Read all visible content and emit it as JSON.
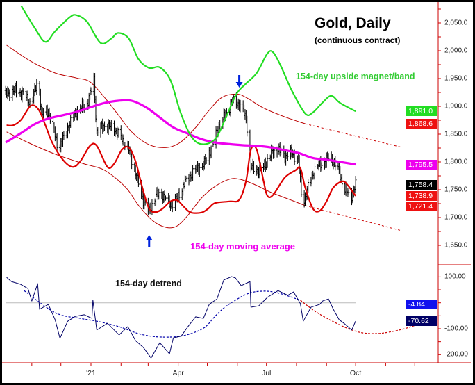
{
  "chart_data": {
    "type": "line",
    "title": "Gold, Daily",
    "subtitle": "(continuous contract)",
    "annotations": {
      "upside_band": "154-day upside magnet/band",
      "moving_average": "154-day moving average",
      "detrend": "154-day detrend"
    },
    "colors": {
      "bars": "#000000",
      "cycle": "#dd0000",
      "envelope": "#bb0000",
      "moving_average": "#ee00ee",
      "upside_band": "#22dd22",
      "detrend": "#000066",
      "detrend_projection": "#cc0000",
      "axis": "#cc0000",
      "arrows": "#0022dd"
    },
    "x_axis": {
      "tick_labels": [
        "'21",
        "Apr",
        "Jul",
        "Oct"
      ],
      "tick_dates": [
        "2021-01-01",
        "2021-04-01",
        "2021-07-01",
        "2021-10-01"
      ]
    },
    "price_axis": {
      "ylim": [
        1625,
        2075
      ],
      "tick_labels": [
        "2,050.0",
        "2,000.0",
        "1,950.0",
        "1,900.0",
        "1,850.0",
        "1,800.0",
        "1,750.0",
        "1,700.0",
        "1,650.0"
      ],
      "ticks": [
        2050,
        2000,
        1950,
        1900,
        1850,
        1800,
        1750,
        1700,
        1650
      ]
    },
    "detrend_axis": {
      "tick_labels": [
        "100.00",
        "-100.00",
        "-200.00"
      ],
      "ticks": [
        100,
        -100,
        -200
      ]
    },
    "price_closes": [
      [
        "2020-10-06",
        1922
      ],
      [
        "2020-10-13",
        1929
      ],
      [
        "2020-10-24",
        1922
      ],
      [
        "2020-10-31",
        1904
      ],
      [
        "2020-11-08",
        1950
      ],
      [
        "2020-11-11",
        1885
      ],
      [
        "2020-11-18",
        1891
      ],
      [
        "2020-11-29",
        1822
      ],
      [
        "2020-12-06",
        1854
      ],
      [
        "2020-12-17",
        1891
      ],
      [
        "2020-12-28",
        1904
      ],
      [
        "2021-01-04",
        1947
      ],
      [
        "2021-01-07",
        1854
      ],
      [
        "2021-01-15",
        1866
      ],
      [
        "2021-01-25",
        1860
      ],
      [
        "2021-02-02",
        1841
      ],
      [
        "2021-02-09",
        1822
      ],
      [
        "2021-02-16",
        1779
      ],
      [
        "2021-02-23",
        1735
      ],
      [
        "2021-03-02",
        1710
      ],
      [
        "2021-03-09",
        1741
      ],
      [
        "2021-03-16",
        1741
      ],
      [
        "2021-03-24",
        1722
      ],
      [
        "2021-03-31",
        1735
      ],
      [
        "2021-04-07",
        1760
      ],
      [
        "2021-04-18",
        1785
      ],
      [
        "2021-04-28",
        1797
      ],
      [
        "2021-05-06",
        1829
      ],
      [
        "2021-05-13",
        1866
      ],
      [
        "2021-05-20",
        1885
      ],
      [
        "2021-05-27",
        1910
      ],
      [
        "2021-06-03",
        1904
      ],
      [
        "2021-06-10",
        1879
      ],
      [
        "2021-06-15",
        1791
      ],
      [
        "2021-06-23",
        1785
      ],
      [
        "2021-06-28",
        1791
      ],
      [
        "2021-07-06",
        1816
      ],
      [
        "2021-07-13",
        1822
      ],
      [
        "2021-07-20",
        1810
      ],
      [
        "2021-07-27",
        1816
      ],
      [
        "2021-08-03",
        1804
      ],
      [
        "2021-08-07",
        1722
      ],
      [
        "2021-08-14",
        1760
      ],
      [
        "2021-08-21",
        1791
      ],
      [
        "2021-08-28",
        1797
      ],
      [
        "2021-09-04",
        1810
      ],
      [
        "2021-09-12",
        1791
      ],
      [
        "2021-09-19",
        1754
      ],
      [
        "2021-09-26",
        1735
      ],
      [
        "2021-10-01",
        1758.4
      ]
    ],
    "moving_average": [
      [
        "2020-10-05",
        1835
      ],
      [
        "2020-10-21",
        1852
      ],
      [
        "2020-11-04",
        1868
      ],
      [
        "2020-11-18",
        1878
      ],
      [
        "2020-12-03",
        1884
      ],
      [
        "2020-12-17",
        1890
      ],
      [
        "2020-12-31",
        1898
      ],
      [
        "2021-01-15",
        1906
      ],
      [
        "2021-01-29",
        1910
      ],
      [
        "2021-02-12",
        1910
      ],
      [
        "2021-02-27",
        1898
      ],
      [
        "2021-03-13",
        1880
      ],
      [
        "2021-03-27",
        1862
      ],
      [
        "2021-04-11",
        1851
      ],
      [
        "2021-04-25",
        1841
      ],
      [
        "2021-05-09",
        1835
      ],
      [
        "2021-05-24",
        1832
      ],
      [
        "2021-06-07",
        1830
      ],
      [
        "2021-06-21",
        1829
      ],
      [
        "2021-07-06",
        1826
      ],
      [
        "2021-07-20",
        1821
      ],
      [
        "2021-08-03",
        1816
      ],
      [
        "2021-08-18",
        1807
      ],
      [
        "2021-09-01",
        1804
      ],
      [
        "2021-09-15",
        1800
      ],
      [
        "2021-10-01",
        1795.5
      ]
    ],
    "upside_band": [
      [
        "2020-10-21",
        2081
      ],
      [
        "2020-11-04",
        2041
      ],
      [
        "2020-11-15",
        2016
      ],
      [
        "2020-11-25",
        2035
      ],
      [
        "2020-12-10",
        2060
      ],
      [
        "2020-12-17",
        2064
      ],
      [
        "2020-12-28",
        2052
      ],
      [
        "2021-01-11",
        2014
      ],
      [
        "2021-01-22",
        2022
      ],
      [
        "2021-01-29",
        2032
      ],
      [
        "2021-02-09",
        2022
      ],
      [
        "2021-02-19",
        1985
      ],
      [
        "2021-03-02",
        1969
      ],
      [
        "2021-03-13",
        1970
      ],
      [
        "2021-03-24",
        1947
      ],
      [
        "2021-04-03",
        1891
      ],
      [
        "2021-04-14",
        1847
      ],
      [
        "2021-04-25",
        1832
      ],
      [
        "2021-05-09",
        1841
      ],
      [
        "2021-05-20",
        1879
      ],
      [
        "2021-05-31",
        1922
      ],
      [
        "2021-06-10",
        1941
      ],
      [
        "2021-06-21",
        1960
      ],
      [
        "2021-07-02",
        1995
      ],
      [
        "2021-07-08",
        1997
      ],
      [
        "2021-07-16",
        1972
      ],
      [
        "2021-07-27",
        1929
      ],
      [
        "2021-08-10",
        1887
      ],
      [
        "2021-08-18",
        1889
      ],
      [
        "2021-08-28",
        1907
      ],
      [
        "2021-09-06",
        1919
      ],
      [
        "2021-09-15",
        1906
      ],
      [
        "2021-10-01",
        1891.0
      ]
    ],
    "cycle": [
      [
        "2020-10-06",
        1866
      ],
      [
        "2020-10-13",
        1866
      ],
      [
        "2020-10-21",
        1876
      ],
      [
        "2020-10-31",
        1901
      ],
      [
        "2020-11-08",
        1894
      ],
      [
        "2020-11-15",
        1866
      ],
      [
        "2020-11-22",
        1835
      ],
      [
        "2020-12-03",
        1804
      ],
      [
        "2020-12-13",
        1791
      ],
      [
        "2020-12-21",
        1801
      ],
      [
        "2020-12-31",
        1829
      ],
      [
        "2021-01-07",
        1829
      ],
      [
        "2021-01-18",
        1791
      ],
      [
        "2021-01-25",
        1797
      ],
      [
        "2021-02-02",
        1822
      ],
      [
        "2021-02-09",
        1826
      ],
      [
        "2021-02-16",
        1801
      ],
      [
        "2021-02-23",
        1754
      ],
      [
        "2021-03-02",
        1716
      ],
      [
        "2021-03-09",
        1710
      ],
      [
        "2021-03-16",
        1716
      ],
      [
        "2021-03-24",
        1729
      ],
      [
        "2021-03-31",
        1731
      ],
      [
        "2021-04-07",
        1719
      ],
      [
        "2021-04-14",
        1709
      ],
      [
        "2021-04-25",
        1709
      ],
      [
        "2021-05-02",
        1716
      ],
      [
        "2021-05-09",
        1726
      ],
      [
        "2021-05-24",
        1729
      ],
      [
        "2021-06-03",
        1732
      ],
      [
        "2021-06-10",
        1766
      ],
      [
        "2021-06-15",
        1822
      ],
      [
        "2021-06-21",
        1822
      ],
      [
        "2021-06-28",
        1766
      ],
      [
        "2021-07-02",
        1739
      ],
      [
        "2021-07-08",
        1741
      ],
      [
        "2021-07-20",
        1772
      ],
      [
        "2021-07-31",
        1785
      ],
      [
        "2021-08-05",
        1789
      ],
      [
        "2021-08-10",
        1754
      ],
      [
        "2021-08-18",
        1716
      ],
      [
        "2021-08-25",
        1712
      ],
      [
        "2021-09-01",
        1729
      ],
      [
        "2021-09-08",
        1754
      ],
      [
        "2021-09-17",
        1765
      ],
      [
        "2021-09-22",
        1760
      ],
      [
        "2021-10-01",
        1738.9
      ]
    ],
    "upper_envelope": [
      [
        "2020-10-06",
        2010
      ],
      [
        "2020-10-31",
        1981
      ],
      [
        "2020-11-25",
        1960
      ],
      [
        "2020-12-17",
        1951
      ],
      [
        "2020-12-31",
        1944
      ],
      [
        "2021-01-15",
        1916
      ],
      [
        "2021-01-29",
        1885
      ],
      [
        "2021-02-12",
        1854
      ],
      [
        "2021-03-02",
        1831
      ],
      [
        "2021-03-20",
        1826
      ],
      [
        "2021-04-03",
        1835
      ],
      [
        "2021-04-18",
        1860
      ],
      [
        "2021-05-02",
        1891
      ],
      [
        "2021-05-16",
        1916
      ],
      [
        "2021-05-31",
        1922
      ],
      [
        "2021-06-10",
        1916
      ],
      [
        "2021-06-28",
        1897
      ],
      [
        "2021-07-20",
        1881
      ],
      [
        "2021-08-10",
        1868.6
      ]
    ],
    "upper_envelope_projection": [
      [
        "2021-08-10",
        1868.6
      ],
      [
        "2021-11-16",
        1827
      ]
    ],
    "lower_envelope": [
      [
        "2020-10-06",
        1854
      ],
      [
        "2020-10-28",
        1835
      ],
      [
        "2020-11-25",
        1814
      ],
      [
        "2020-12-24",
        1797
      ],
      [
        "2021-01-15",
        1785
      ],
      [
        "2021-02-06",
        1754
      ],
      [
        "2021-02-19",
        1722
      ],
      [
        "2021-03-06",
        1694
      ],
      [
        "2021-03-20",
        1682
      ],
      [
        "2021-03-31",
        1685
      ],
      [
        "2021-04-11",
        1704
      ],
      [
        "2021-04-25",
        1735
      ],
      [
        "2021-05-09",
        1756
      ],
      [
        "2021-05-24",
        1769
      ],
      [
        "2021-06-03",
        1769
      ],
      [
        "2021-06-18",
        1760
      ],
      [
        "2021-07-06",
        1745
      ],
      [
        "2021-07-27",
        1731
      ],
      [
        "2021-08-10",
        1721.4
      ]
    ],
    "lower_envelope_projection": [
      [
        "2021-08-10",
        1721.4
      ],
      [
        "2021-11-16",
        1677
      ]
    ],
    "detrend": [
      [
        "2020-10-06",
        98
      ],
      [
        "2020-10-11",
        82
      ],
      [
        "2020-10-20",
        72
      ],
      [
        "2020-10-28",
        55
      ],
      [
        "2020-11-01",
        7
      ],
      [
        "2020-11-07",
        74
      ],
      [
        "2020-11-09",
        -25
      ],
      [
        "2020-11-18",
        -6
      ],
      [
        "2020-11-25",
        -65
      ],
      [
        "2020-11-30",
        -137
      ],
      [
        "2020-12-08",
        -71
      ],
      [
        "2020-12-16",
        -52
      ],
      [
        "2020-12-25",
        -46
      ],
      [
        "2021-01-02",
        -60
      ],
      [
        "2021-01-03",
        10
      ],
      [
        "2021-01-07",
        -105
      ],
      [
        "2021-01-18",
        -79
      ],
      [
        "2021-01-30",
        -124
      ],
      [
        "2021-02-08",
        -92
      ],
      [
        "2021-02-16",
        -146
      ],
      [
        "2021-02-24",
        -172
      ],
      [
        "2021-03-04",
        -213
      ],
      [
        "2021-03-13",
        -154
      ],
      [
        "2021-03-23",
        -197
      ],
      [
        "2021-03-27",
        -135
      ],
      [
        "2021-04-04",
        -129
      ],
      [
        "2021-04-11",
        -92
      ],
      [
        "2021-04-19",
        -54
      ],
      [
        "2021-04-27",
        -60
      ],
      [
        "2021-05-03",
        -6
      ],
      [
        "2021-05-11",
        15
      ],
      [
        "2021-05-18",
        88
      ],
      [
        "2021-05-26",
        101
      ],
      [
        "2021-05-30",
        96
      ],
      [
        "2021-06-05",
        66
      ],
      [
        "2021-06-14",
        82
      ],
      [
        "2021-06-15",
        -17
      ],
      [
        "2021-06-23",
        -12
      ],
      [
        "2021-07-02",
        21
      ],
      [
        "2021-07-13",
        47
      ],
      [
        "2021-07-23",
        29
      ],
      [
        "2021-07-29",
        42
      ],
      [
        "2021-08-05",
        -3
      ],
      [
        "2021-08-08",
        -71
      ],
      [
        "2021-08-16",
        -17
      ],
      [
        "2021-08-25",
        -6
      ],
      [
        "2021-08-28",
        7
      ],
      [
        "2021-09-03",
        15
      ],
      [
        "2021-09-08",
        -25
      ],
      [
        "2021-09-14",
        -65
      ],
      [
        "2021-09-19",
        -79
      ],
      [
        "2021-09-27",
        -105
      ],
      [
        "2021-10-01",
        -70.62
      ]
    ],
    "detrend_cycle": [
      [
        "2020-10-24",
        47
      ],
      [
        "2020-11-25",
        -38
      ],
      [
        "2020-12-21",
        -60
      ],
      [
        "2021-01-07",
        -71
      ],
      [
        "2021-01-30",
        -92
      ],
      [
        "2021-02-20",
        -120
      ],
      [
        "2021-03-13",
        -132
      ],
      [
        "2021-04-06",
        -127
      ],
      [
        "2021-04-27",
        -98
      ],
      [
        "2021-05-09",
        -52
      ],
      [
        "2021-05-21",
        -12
      ],
      [
        "2021-06-11",
        34
      ],
      [
        "2021-06-28",
        45
      ],
      [
        "2021-07-14",
        37
      ],
      [
        "2021-08-05",
        10
      ]
    ],
    "detrend_projection": [
      [
        "2021-08-05",
        10
      ],
      [
        "2021-08-25",
        -44
      ],
      [
        "2021-09-27",
        -105
      ],
      [
        "2021-10-21",
        -119
      ],
      [
        "2021-11-15",
        -105
      ],
      [
        "2021-12-04",
        -84
      ]
    ],
    "detrend_reference": -4.84,
    "last_values": [
      {
        "label": "1,891.0",
        "value": 1891.0,
        "color": "#22dd22",
        "series": "upside_band"
      },
      {
        "label": "1,868.6",
        "value": 1868.6,
        "color": "#ee1111",
        "series": "upper_envelope"
      },
      {
        "label": "1,795.5",
        "value": 1795.5,
        "color": "#ee00ee",
        "series": "moving_average"
      },
      {
        "label": "1,758.4",
        "value": 1758.4,
        "color": "#000000",
        "series": "price"
      },
      {
        "label": "1,738.9",
        "value": 1738.9,
        "color": "#ee1111",
        "series": "cycle"
      },
      {
        "label": "1,721.4",
        "value": 1721.4,
        "color": "#ee1111",
        "series": "lower_envelope"
      }
    ],
    "detrend_last_values": [
      {
        "label": "-4.84",
        "value": -4.84,
        "color": "#1111ee"
      },
      {
        "label": "-70.62",
        "value": -70.62,
        "color": "#000066"
      }
    ],
    "arrow_markers": [
      {
        "date": "2021-06-03",
        "direction": "down"
      },
      {
        "date": "2021-03-02",
        "direction": "up"
      }
    ]
  }
}
